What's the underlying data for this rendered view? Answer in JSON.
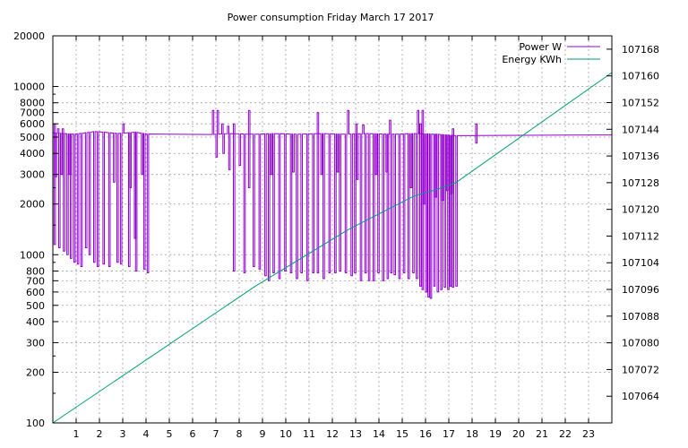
{
  "chart_data": {
    "type": "line",
    "title": "Power consumption Friday March 17 2017",
    "x_ticks": [
      1,
      2,
      3,
      4,
      5,
      6,
      7,
      8,
      9,
      10,
      11,
      12,
      13,
      14,
      15,
      16,
      17,
      18,
      19,
      20,
      21,
      22,
      23
    ],
    "xlim": [
      0,
      24
    ],
    "y_left": {
      "scale": "log",
      "lim": [
        100,
        20000
      ],
      "ticks": [
        100,
        200,
        300,
        400,
        500,
        600,
        700,
        800,
        1000,
        2000,
        3000,
        4000,
        5000,
        6000,
        7000,
        8000,
        10000,
        20000
      ]
    },
    "y_right": {
      "lim": [
        107056,
        107172
      ],
      "ticks": [
        107064,
        107072,
        107080,
        107088,
        107096,
        107104,
        107112,
        107120,
        107128,
        107136,
        107144,
        107152,
        107160,
        107168
      ]
    },
    "grid": true,
    "legend_position": "top-right",
    "series": [
      {
        "name": "Power W",
        "axis": "left",
        "color": "#9400d3",
        "base_value": 5200,
        "baseline": [
          [
            0,
            5300
          ],
          [
            0.9,
            5200
          ],
          [
            1.8,
            5400
          ],
          [
            2.8,
            5250
          ],
          [
            3.5,
            5350
          ],
          [
            4.5,
            5100
          ],
          [
            5.5,
            5250
          ],
          [
            6.5,
            5150
          ],
          [
            7.5,
            5250
          ],
          [
            8.5,
            5200
          ],
          [
            9.5,
            5250
          ],
          [
            10.5,
            5200
          ],
          [
            11.5,
            5250
          ],
          [
            12.5,
            5200
          ],
          [
            13.5,
            5250
          ],
          [
            14.5,
            5200
          ],
          [
            15.5,
            5250
          ],
          [
            16.5,
            5200
          ],
          [
            17.2,
            5100
          ],
          [
            18.0,
            5100
          ],
          [
            19.0,
            5200
          ],
          [
            20.0,
            5300
          ],
          [
            21.0,
            5250
          ],
          [
            22.0,
            5200
          ],
          [
            23.0,
            5250
          ],
          [
            24.0,
            5150
          ]
        ],
        "dips": [
          [
            0.05,
            1150
          ],
          [
            0.25,
            1100
          ],
          [
            0.45,
            1050
          ],
          [
            0.6,
            1000
          ],
          [
            0.75,
            950
          ],
          [
            0.9,
            900
          ],
          [
            1.05,
            880
          ],
          [
            1.2,
            850
          ],
          [
            1.4,
            1100
          ],
          [
            1.55,
            1000
          ],
          [
            1.75,
            900
          ],
          [
            1.9,
            850
          ],
          [
            2.15,
            880
          ],
          [
            2.4,
            850
          ],
          [
            2.75,
            900
          ],
          [
            2.9,
            880
          ],
          [
            3.25,
            850
          ],
          [
            3.5,
            1250
          ],
          [
            3.55,
            800
          ],
          [
            3.9,
            820
          ],
          [
            4.05,
            780
          ],
          [
            7.75,
            800
          ],
          [
            8.2,
            780
          ],
          [
            8.6,
            850
          ],
          [
            8.85,
            820
          ],
          [
            9.1,
            750
          ],
          [
            9.25,
            700
          ],
          [
            9.45,
            780
          ],
          [
            9.7,
            720
          ],
          [
            9.95,
            800
          ],
          [
            10.2,
            780
          ],
          [
            10.45,
            720
          ],
          [
            10.65,
            780
          ],
          [
            10.9,
            700
          ],
          [
            11.15,
            780
          ],
          [
            11.35,
            780
          ],
          [
            11.6,
            720
          ],
          [
            11.85,
            780
          ],
          [
            12.1,
            780
          ],
          [
            12.3,
            800
          ],
          [
            12.55,
            780
          ],
          [
            12.8,
            750
          ],
          [
            12.95,
            780
          ],
          [
            13.2,
            700
          ],
          [
            13.4,
            780
          ],
          [
            13.55,
            700
          ],
          [
            13.75,
            700
          ],
          [
            13.95,
            780
          ],
          [
            14.15,
            700
          ],
          [
            14.35,
            720
          ],
          [
            14.5,
            780
          ],
          [
            14.65,
            760
          ],
          [
            14.85,
            720
          ],
          [
            15.05,
            780
          ],
          [
            15.25,
            720
          ],
          [
            15.45,
            780
          ],
          [
            15.6,
            720
          ],
          [
            15.75,
            650
          ],
          [
            15.85,
            620
          ],
          [
            16.0,
            600
          ],
          [
            16.1,
            560
          ],
          [
            16.2,
            550
          ],
          [
            16.35,
            650
          ],
          [
            16.5,
            600
          ],
          [
            16.65,
            620
          ],
          [
            16.8,
            640
          ],
          [
            16.95,
            620
          ],
          [
            17.05,
            650
          ],
          [
            17.15,
            640
          ],
          [
            17.3,
            650
          ]
        ],
        "dips_mid": [
          [
            0.1,
            2900
          ],
          [
            0.35,
            3000
          ],
          [
            0.7,
            3000
          ],
          [
            2.6,
            2700
          ],
          [
            3.3,
            2500
          ],
          [
            3.8,
            3000
          ],
          [
            7.0,
            3800
          ],
          [
            7.3,
            4000
          ],
          [
            7.55,
            3200
          ],
          [
            8.0,
            3400
          ],
          [
            8.4,
            2500
          ],
          [
            9.35,
            3000
          ],
          [
            10.3,
            3100
          ],
          [
            11.5,
            3000
          ],
          [
            12.2,
            3100
          ],
          [
            13.05,
            2800
          ],
          [
            13.85,
            3000
          ],
          [
            14.3,
            3100
          ],
          [
            15.35,
            2500
          ],
          [
            15.9,
            2000
          ],
          [
            16.4,
            2200
          ],
          [
            16.7,
            2100
          ],
          [
            16.9,
            2400
          ],
          [
            17.1,
            2300
          ],
          [
            18.15,
            4600
          ]
        ],
        "spikes": [
          [
            0.05,
            6000
          ],
          [
            0.2,
            5600
          ],
          [
            0.4,
            5600
          ],
          [
            3.0,
            6000
          ],
          [
            6.85,
            7200
          ],
          [
            7.05,
            7200
          ],
          [
            7.25,
            6000
          ],
          [
            7.5,
            5800
          ],
          [
            7.75,
            6000
          ],
          [
            8.4,
            7200
          ],
          [
            11.35,
            7000
          ],
          [
            12.65,
            7200
          ],
          [
            13.0,
            6000
          ],
          [
            13.3,
            5900
          ],
          [
            14.45,
            6300
          ],
          [
            15.65,
            7200
          ],
          [
            15.75,
            6000
          ],
          [
            15.85,
            7200
          ],
          [
            17.15,
            5600
          ],
          [
            18.15,
            6000
          ]
        ]
      },
      {
        "name": "Energy KWh",
        "axis": "right",
        "color": "#009e73",
        "points": [
          [
            0,
            107056
          ],
          [
            8.7,
            107097
          ],
          [
            12.7,
            107114
          ],
          [
            15.5,
            107124
          ],
          [
            16.5,
            107126
          ],
          [
            17.3,
            107128
          ],
          [
            24,
            107161
          ]
        ]
      }
    ]
  }
}
